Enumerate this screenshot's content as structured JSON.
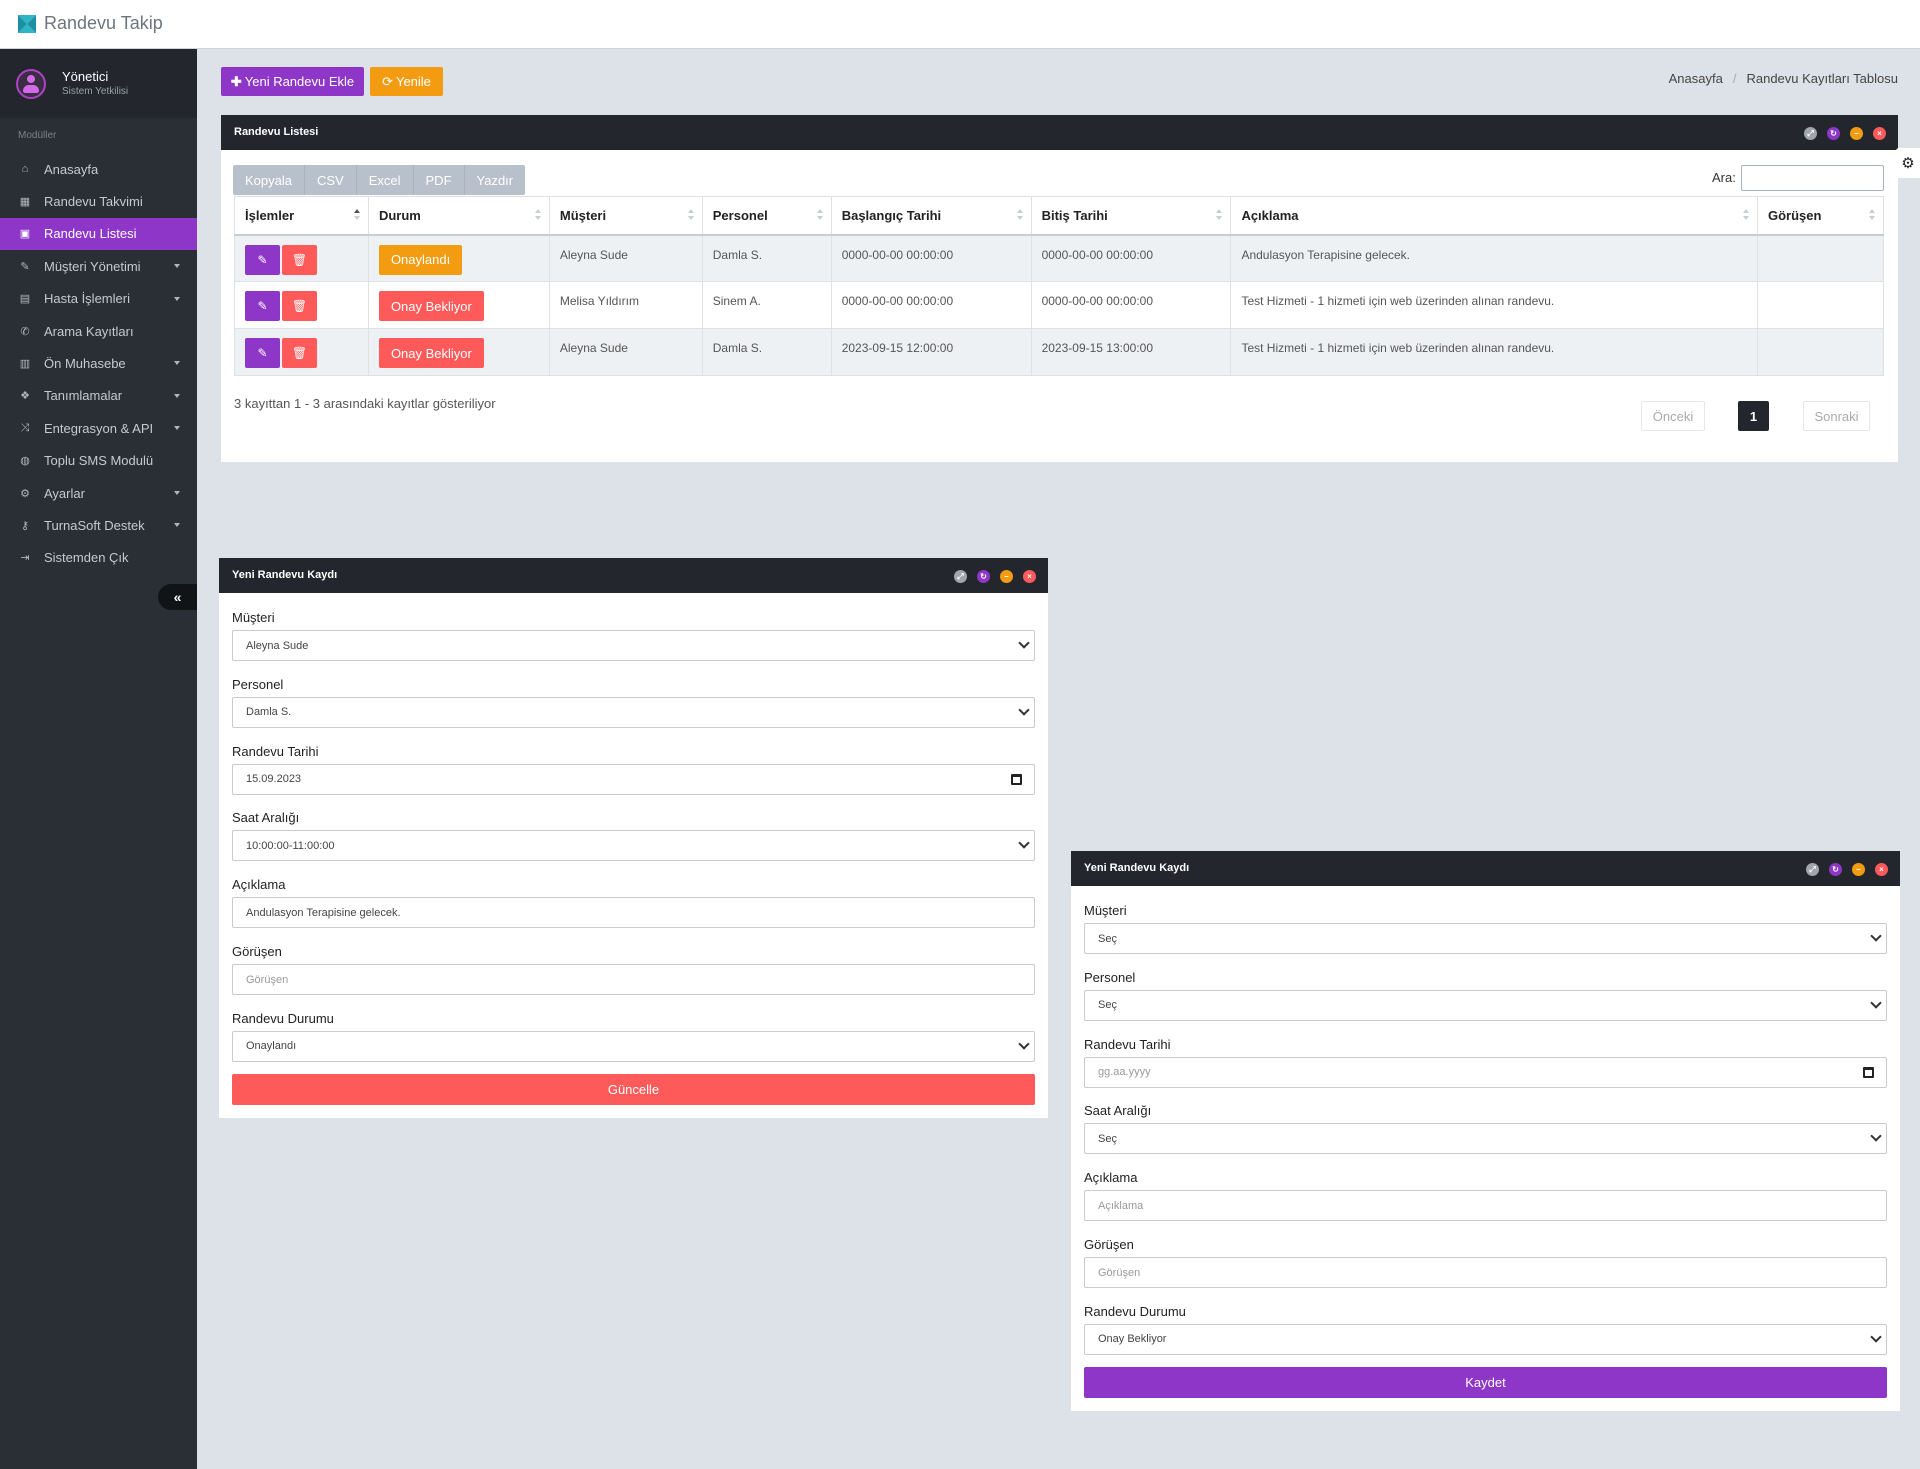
{
  "app": {
    "title": "Randevu Takip"
  },
  "user": {
    "name": "Yönetici",
    "role": "Sistem Yetkilisi"
  },
  "sidebar": {
    "section_label": "Modüller",
    "items": [
      {
        "label": "Anasayfa",
        "icon": "home-icon",
        "glyph": "⌂",
        "submenu": false,
        "active": false
      },
      {
        "label": "Randevu Takvimi",
        "icon": "calendar-icon",
        "glyph": "▦",
        "submenu": false,
        "active": false
      },
      {
        "label": "Randevu Listesi",
        "icon": "calendar-plus-icon",
        "glyph": "▣",
        "submenu": false,
        "active": true
      },
      {
        "label": "Müşteri Yönetimi",
        "icon": "edit-icon",
        "glyph": "✎",
        "submenu": true,
        "active": false
      },
      {
        "label": "Hasta İşlemleri",
        "icon": "book-icon",
        "glyph": "▤",
        "submenu": true,
        "active": false
      },
      {
        "label": "Arama Kayıtları",
        "icon": "phone-icon",
        "glyph": "✆",
        "submenu": false,
        "active": false
      },
      {
        "label": "Ön Muhasebe",
        "icon": "bar-chart-icon",
        "glyph": "▥",
        "submenu": true,
        "active": false
      },
      {
        "label": "Tanımlamalar",
        "icon": "cubes-icon",
        "glyph": "❖",
        "submenu": true,
        "active": false
      },
      {
        "label": "Entegrasyon & API",
        "icon": "shuffle-icon",
        "glyph": "⤨",
        "submenu": true,
        "active": false
      },
      {
        "label": "Toplu SMS Modulü",
        "icon": "comments-icon",
        "glyph": "◍",
        "submenu": false,
        "active": false
      },
      {
        "label": "Ayarlar",
        "icon": "cogs-icon",
        "glyph": "⚙",
        "submenu": true,
        "active": false
      },
      {
        "label": "TurnaSoft Destek",
        "icon": "key-icon",
        "glyph": "⚷",
        "submenu": true,
        "active": false
      },
      {
        "label": "Sistemden Çık",
        "icon": "sign-out-icon",
        "glyph": "⇥",
        "submenu": false,
        "active": false
      }
    ],
    "collapse_glyph": "«"
  },
  "toolbar": {
    "new_label": "Yeni Randevu Ekle",
    "refresh_label": "Yenile"
  },
  "breadcrumb": {
    "home": "Anasayfa",
    "separator": "/",
    "current": "Randevu Kayıtları Tablosu"
  },
  "list_panel": {
    "title": "Randevu Listesi",
    "export_buttons": [
      "Kopyala",
      "CSV",
      "Excel",
      "PDF",
      "Yazdır"
    ],
    "search_label": "Ara:",
    "columns": [
      "İşlemler",
      "Durum",
      "Müşteri",
      "Personel",
      "Başlangıç Tarihi",
      "Bitiş Tarihi",
      "Açıklama",
      "Görüşen"
    ],
    "rows": [
      {
        "status": "Onaylandı",
        "status_type": "ok",
        "customer": "Aleyna Sude",
        "staff": "Damla S.",
        "start": "0000-00-00 00:00:00",
        "end": "0000-00-00 00:00:00",
        "desc": "Andulasyon Terapisine gelecek.",
        "interviewer": ""
      },
      {
        "status": "Onay Bekliyor",
        "status_type": "wait",
        "customer": "Melisa Yıldırım",
        "staff": "Sinem A.",
        "start": "0000-00-00 00:00:00",
        "end": "0000-00-00 00:00:00",
        "desc": "Test Hizmeti - 1 hizmeti için web üzerinden alınan randevu.",
        "interviewer": ""
      },
      {
        "status": "Onay Bekliyor",
        "status_type": "wait",
        "customer": "Aleyna Sude",
        "staff": "Damla S.",
        "start": "2023-09-15 12:00:00",
        "end": "2023-09-15 13:00:00",
        "desc": "Test Hizmeti - 1 hizmeti için web üzerinden alınan randevu.",
        "interviewer": ""
      }
    ],
    "info": "3 kayıttan 1 - 3 arasındaki kayıtlar gösteriliyor",
    "pager": {
      "prev": "Önceki",
      "current": "1",
      "next": "Sonraki"
    }
  },
  "form_edit": {
    "title": "Yeni Randevu Kaydı",
    "labels": {
      "customer": "Müşteri",
      "staff": "Personel",
      "date": "Randevu Tarihi",
      "time": "Saat Aralığı",
      "desc": "Açıklama",
      "interviewer": "Görüşen",
      "status": "Randevu Durumu"
    },
    "values": {
      "customer": "Aleyna Sude",
      "staff": "Damla S.",
      "date": "15.09.2023",
      "time": "10:00:00-11:00:00",
      "desc": "Andulasyon Terapisine gelecek.",
      "interviewer": "Görüşen",
      "status": "Onaylandı"
    },
    "submit": "Güncelle"
  },
  "form_new": {
    "title": "Yeni Randevu Kaydı",
    "labels": {
      "customer": "Müşteri",
      "staff": "Personel",
      "date": "Randevu Tarihi",
      "time": "Saat Aralığı",
      "desc": "Açıklama",
      "interviewer": "Görüşen",
      "status": "Randevu Durumu"
    },
    "values": {
      "customer": "Seç",
      "staff": "Seç",
      "date": "gg.aa.yyyy",
      "time": "Seç",
      "desc": "Açıklama",
      "interviewer": "Görüşen",
      "status": "Onay Bekliyor"
    },
    "submit": "Kaydet"
  },
  "colors": {
    "accent": "#8e36c7",
    "warning": "#f39c12",
    "danger": "#ff5a5a",
    "dark": "#23272d",
    "sidebar": "#2a2f36"
  }
}
